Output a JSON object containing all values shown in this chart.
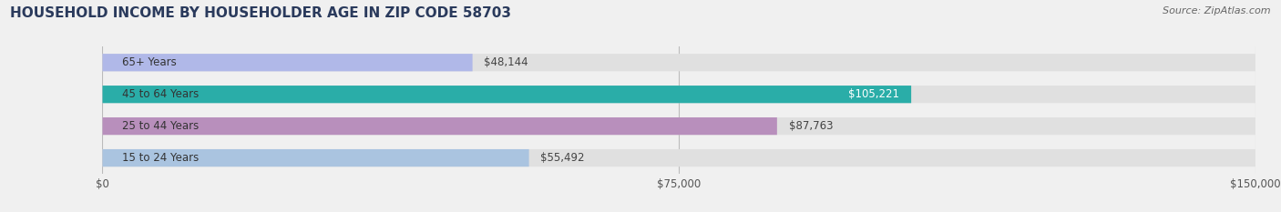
{
  "title": "HOUSEHOLD INCOME BY HOUSEHOLDER AGE IN ZIP CODE 58703",
  "source": "Source: ZipAtlas.com",
  "categories": [
    "15 to 24 Years",
    "25 to 44 Years",
    "45 to 64 Years",
    "65+ Years"
  ],
  "values": [
    55492,
    87763,
    105221,
    48144
  ],
  "bar_colors": [
    "#aac4e0",
    "#b88fbc",
    "#2aada8",
    "#b0b8e8"
  ],
  "bar_label_colors": [
    "#444444",
    "#444444",
    "#ffffff",
    "#444444"
  ],
  "xlim": [
    0,
    150000
  ],
  "xticks": [
    0,
    75000,
    150000
  ],
  "xtick_labels": [
    "$0",
    "$75,000",
    "$150,000"
  ],
  "background_color": "#f0f0f0",
  "bar_background_color": "#e0e0e0",
  "title_fontsize": 11,
  "source_fontsize": 8,
  "label_fontsize": 8.5,
  "tick_fontsize": 8.5,
  "bar_height": 0.55,
  "figsize": [
    14.06,
    2.33
  ],
  "dpi": 100
}
